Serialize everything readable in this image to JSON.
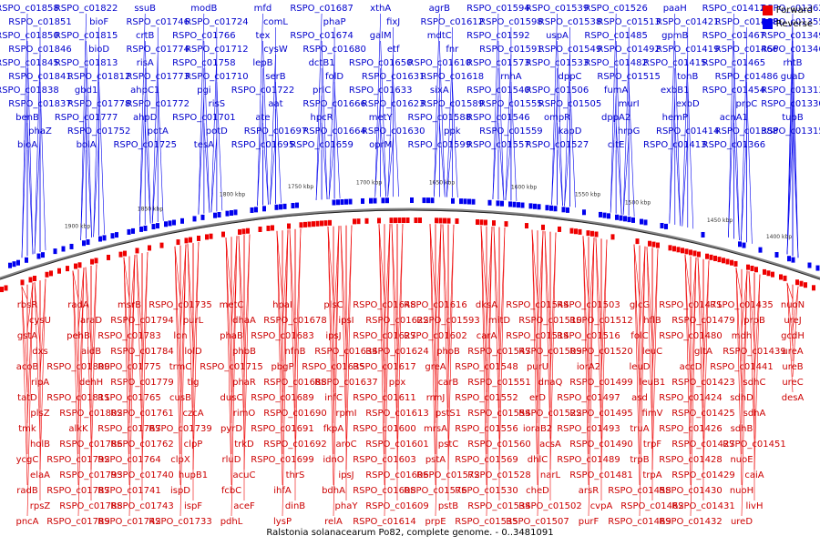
{
  "caption": "Ralstonia solanacearum Po82, complete genome. - 0..3481091",
  "legend": {
    "forward_label": "Forward",
    "reverse_label": "Reverse",
    "forward_color": "#ee0000",
    "reverse_color": "#0000ee"
  },
  "ticks": [
    "1400 kbp",
    "1450 kbp",
    "1500 kbp",
    "1550 kbp",
    "1600 kbp",
    "1650 kbp",
    "1700 kbp",
    "1750 kbp",
    "1800 kbp",
    "1850 kbp",
    "1900 kbp"
  ],
  "reverse_genes": [
    "RSPO_c01858",
    "RSPO_c01851",
    "RSPO_c01850",
    "RSPO_c01846",
    "RSPO_c01845",
    "RSPO_c01841",
    "RSPO_c01838",
    "RSPO_c01837",
    "benB",
    "phaZ",
    "bioA",
    "RSPO_c01822",
    "bioF",
    "RSPO_c01815",
    "bioD",
    "RSPO_c01813",
    "RSPO_c01812",
    "gbd1",
    "RSPO_c01778",
    "RSPO_c01777",
    "RSPO_c01752",
    "bolA",
    "ssuB",
    "RSPO_c01746",
    "crtB",
    "RSPO_c01774",
    "risA",
    "RSPO_c01773",
    "ahpC1",
    "RSPO_c01772",
    "ahpD",
    "potA",
    "RSPO_c01725",
    "modB",
    "RSPO_c01724",
    "RSPO_c01766",
    "RSPO_c01712",
    "RSPO_c01758",
    "RSPO_c01710",
    "pgi",
    "risS",
    "RSPO_c01701",
    "potD",
    "tesA",
    "mfd",
    "comL",
    "tex",
    "cysW",
    "lepB",
    "serB",
    "RSPO_c01722",
    "aat",
    "ate",
    "RSPO_c01697",
    "RSPO_c01695",
    "RSPO_c01687",
    "phaP",
    "RSPO_c01674",
    "RSPO_c01680",
    "dctB1",
    "folD",
    "prlC",
    "RSPO_c01666",
    "hpcR",
    "RSPO_c01664",
    "RSPO_c01659",
    "xthA",
    "fixJ",
    "galM",
    "etf",
    "RSPO_c01650",
    "RSPO_c01631",
    "RSPO_c01633",
    "RSPO_c01623",
    "metY",
    "RSPO_c01630",
    "oprM",
    "agrB",
    "RSPO_c01612",
    "mdtC",
    "fnr",
    "RSPO_c01610",
    "RSPO_c01618",
    "sixA",
    "RSPO_c01589",
    "RSPO_c01588",
    "ppk",
    "RSPO_c01599",
    "RSPO_c01594",
    "RSPO_c01598",
    "RSPO_c01592",
    "RSPO_c01591",
    "RSPO_c01573",
    "rnhA",
    "RSPO_c01540",
    "RSPO_c01555",
    "RSPO_c01546",
    "RSPO_c01559",
    "RSPO_c01557",
    "RSPO_c01539",
    "RSPO_c01538",
    "uspA",
    "RSPO_c01549",
    "RSPO_c01533",
    "dppC",
    "RSPO_c01506",
    "RSPO_c01505",
    "ompR",
    "kapD",
    "RSPO_c01527",
    "RSPO_c01526",
    "RSPO_c01513",
    "RSPO_c01485",
    "RSPO_c01492",
    "RSPO_c01482",
    "RSPO_c01515",
    "fumA",
    "murI",
    "dppA2",
    "hrpG",
    "citE",
    "paaH",
    "RSPO_c01421",
    "gpmB",
    "RSPO_c01419",
    "RSPO_c01415",
    "tonB",
    "exbB1",
    "exbD",
    "hemP",
    "RSPO_c01414",
    "RSPO_c01413",
    "RSPO_c01412",
    "RSPO_c01408",
    "RSPO_c01467",
    "RSPO_c01466",
    "RSPO_c01465",
    "RSPO_c01486",
    "RSPO_c01454",
    "prpC",
    "acnA1",
    "RSPO_c01388",
    "RSPO_c01366",
    "RSPO_c01362",
    "RSPO_c01355",
    "RSPO_c01349",
    "RSPO_c01346",
    "rhtB",
    "guaD",
    "RSPO_c01313",
    "RSPO_c01330",
    "tupB",
    "RSPO_c01315"
  ],
  "forward_genes": [
    "rbsR",
    "cysU",
    "gstA",
    "dxs",
    "acoB",
    "ripA",
    "tatD",
    "plsZ",
    "tmk",
    "holB",
    "ycgC",
    "elaA",
    "radB",
    "rpsZ",
    "pncA",
    "gno",
    "radA",
    "araD",
    "pehB",
    "aidB",
    "RSPO_c01800",
    "dehH",
    "RSPO_c01811",
    "RSPO_c01802",
    "alkK",
    "RSPO_c01786",
    "RSPO_c01792",
    "RSPO_c01793",
    "RSPO_c01787",
    "RSPO_c01788",
    "RSPO_c01789",
    "RSPO_c01790",
    "msrB",
    "RSPO_c01794",
    "RSPO_c01783",
    "RSPO_c01784",
    "RSPO_c01775",
    "RSPO_c01779",
    "RSPO_c01765",
    "RSPO_c01761",
    "RSPO_c01767",
    "RSPO_c01762",
    "RSPO_c01764",
    "RSPO_c01740",
    "RSPO_c01741",
    "RSPO_c01743",
    "RSPO_c01742",
    "RSPO_c01734",
    "RSPO_c01735",
    "purL",
    "lon",
    "lolD",
    "trmC",
    "tig",
    "cusB",
    "czcA",
    "RSPO_c01739",
    "clpP",
    "clpX",
    "hupB1",
    "ispD",
    "ispF",
    "RSPO_c01733",
    "phbC",
    "metC",
    "dhaA",
    "phaB",
    "phbB",
    "RSPO_c01715",
    "phaR",
    "dusC",
    "rimO",
    "pyrD",
    "trkD",
    "rluD",
    "acuC",
    "fcbC",
    "aceF",
    "pdhL",
    "aceE",
    "hpaI",
    "RSPO_c01678",
    "RSPO_c01683",
    "nfnB",
    "pbgP",
    "RSPO_c01688",
    "RSPO_c01689",
    "RSPO_c01690",
    "RSPO_c01691",
    "RSPO_c01692",
    "RSPO_c01699",
    "thrS",
    "ihfA",
    "dinB",
    "lysP",
    "codA",
    "plsC",
    "ipsI",
    "ipsJ",
    "RSPO_c01634",
    "RSPO_c01635",
    "RSPO_c01637",
    "infC",
    "rpmI",
    "fkpA",
    "aroC",
    "idnO",
    "ipsJ",
    "bdhA",
    "phaY",
    "relA",
    "rplT",
    "RSPO_c01648",
    "RSPO_c01622",
    "RSPO_c01627",
    "RSPO_c01624",
    "RSPO_c01617",
    "ppx",
    "RSPO_c01611",
    "RSPO_c01613",
    "RSPO_c01600",
    "RSPO_c01601",
    "RSPO_c01603",
    "RSPO_c01606",
    "RSPO_c01608",
    "RSPO_c01609",
    "RSPO_c01614",
    "RSPO_c01615",
    "RSPO_c01616",
    "RSPO_c01593",
    "RSPO_c01602",
    "phoB",
    "greA",
    "carB",
    "rrmJ",
    "pstS1",
    "mrsA",
    "pstC",
    "pstA",
    "RSPO_c01572",
    "RSPO_c01576",
    "pstB",
    "prpE",
    "mel",
    "dksA",
    "mitD",
    "carA",
    "RSPO_c01547",
    "RSPO_c01548",
    "RSPO_c01551",
    "RSPO_c01552",
    "RSPO_c01554",
    "RSPO_c01556",
    "RSPO_c01560",
    "RSPO_c01569",
    "RSPO_c01528",
    "RSPO_c01530",
    "RSPO_c01534",
    "RSPO_c01535",
    "RSPO_c01536",
    "RSPO_c01544",
    "RSPO_c01510",
    "RSPO_c01514",
    "RSPO_c01509",
    "purU",
    "dnaQ",
    "erD",
    "RSPO_c01522",
    "ioraB2",
    "acsA",
    "dhlC",
    "narL",
    "cheD",
    "RSPO_c01502",
    "RSPO_c01507",
    "RSPO_c01511",
    "RSPO_c01503",
    "RSPO_c01512",
    "RSPO_c01516",
    "RSPO_c01520",
    "iorA2",
    "RSPO_c01499",
    "RSPO_c01497",
    "RSPO_c01495",
    "RSPO_c01493",
    "RSPO_c01490",
    "RSPO_c01489",
    "RSPO_c01481",
    "arsR",
    "cvpA",
    "purF",
    "phaP3",
    "glcG",
    "hflB",
    "folC",
    "leuC",
    "leuD",
    "leuB1",
    "asd",
    "fimV",
    "truA",
    "trpF",
    "trpB",
    "trpA",
    "RSPO_c01458",
    "RSPO_c01462",
    "RSPO_c01469",
    "RSPO_c01470",
    "RSPO_c01471",
    "RSPO_c01479",
    "RSPO_c01480",
    "gltA",
    "accD",
    "RSPO_c01423",
    "RSPO_c01424",
    "RSPO_c01425",
    "RSPO_c01426",
    "RSPO_c01427",
    "RSPO_c01428",
    "RSPO_c01429",
    "RSPO_c01430",
    "RSPO_c01431",
    "RSPO_c01432",
    "prpD",
    "RSPO_c01435",
    "prpB",
    "mdh",
    "RSPO_c01439",
    "RSPO_c01441",
    "sdhC",
    "sdhD",
    "sdhA",
    "sdhB",
    "RSPO_c01451",
    "nuoE",
    "caiA",
    "nuoH",
    "livH",
    "ureD",
    "nuoI",
    "nuoN",
    "ureJ",
    "gcdH",
    "ureA",
    "ureB",
    "ureC",
    "desA"
  ]
}
